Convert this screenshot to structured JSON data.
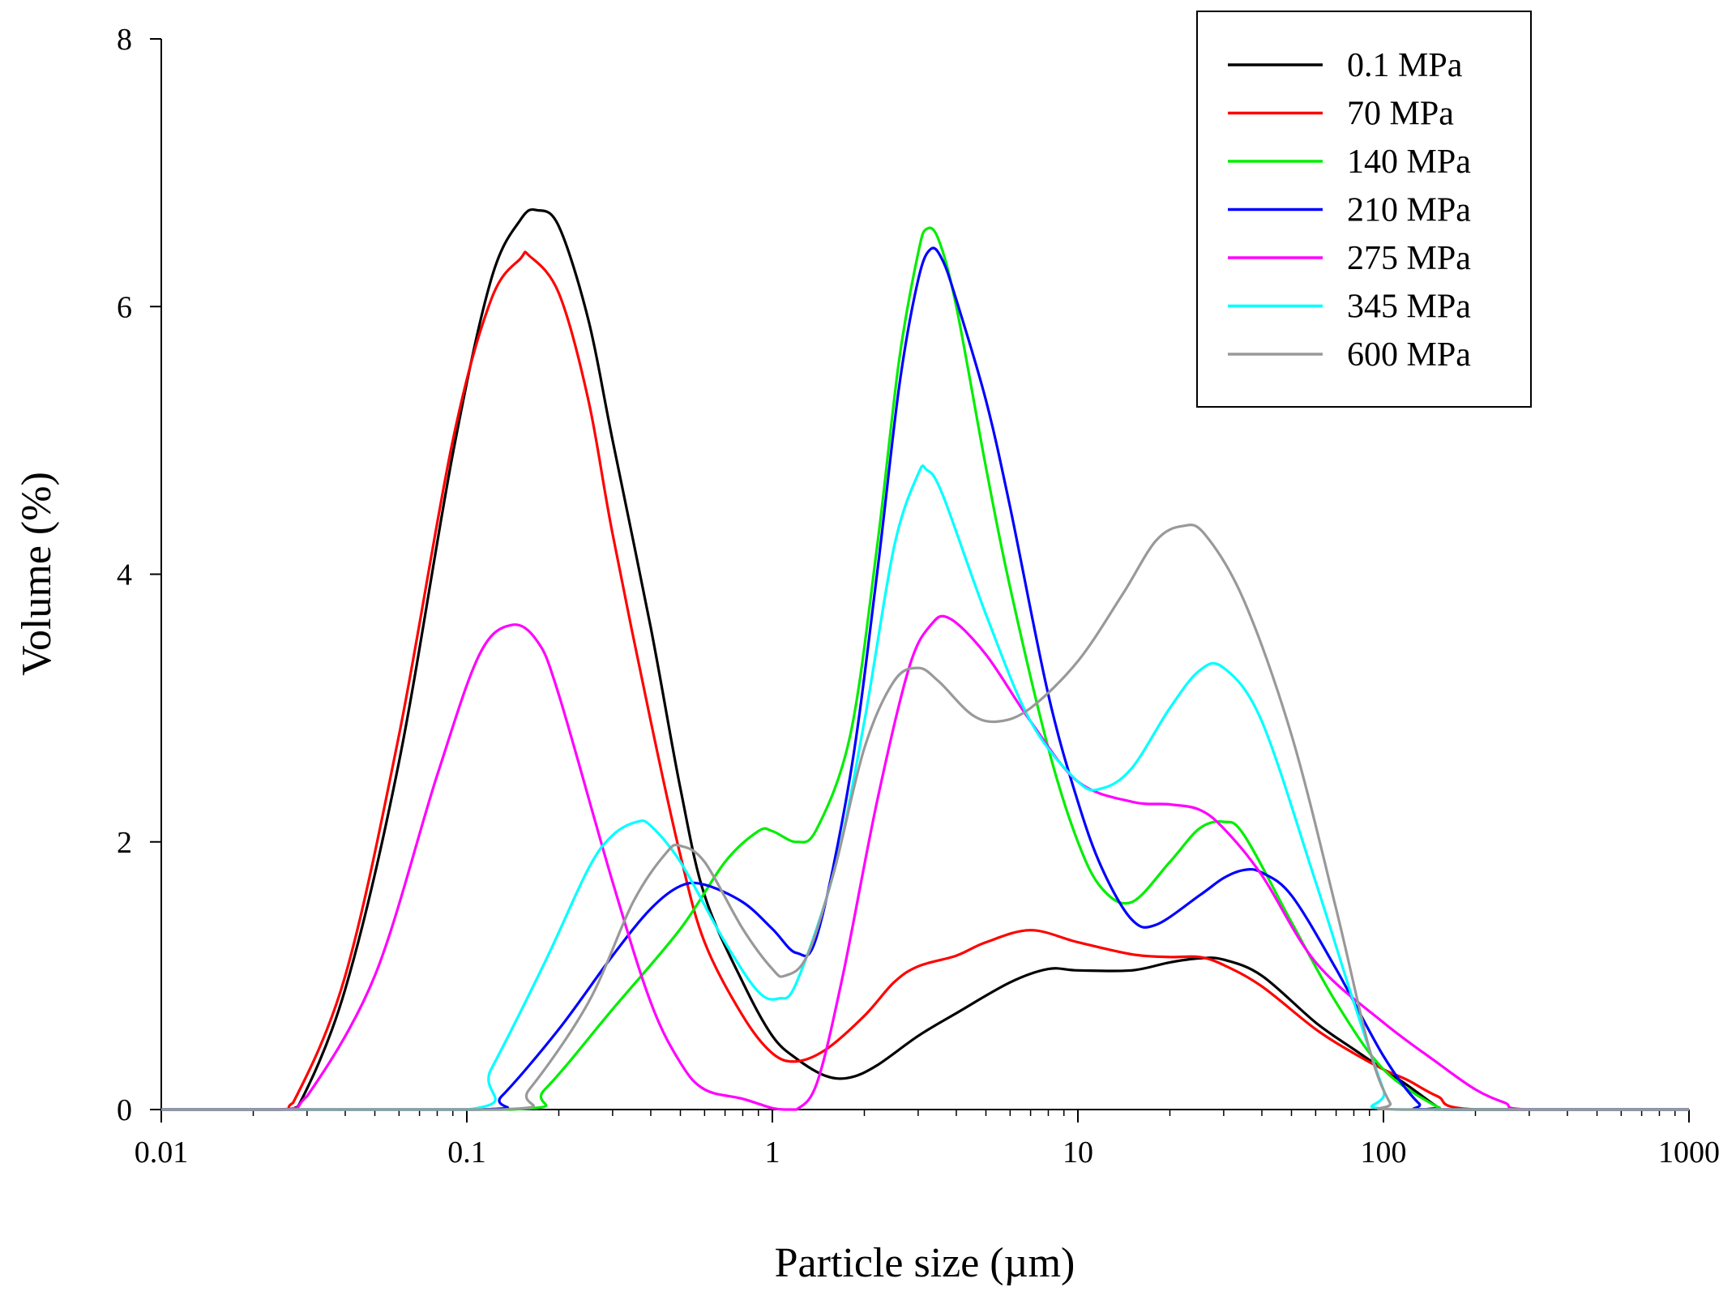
{
  "chart_data": {
    "type": "line",
    "title": "",
    "xlabel": "Particle size (µm)",
    "ylabel": "Volume (%)",
    "xscale": "log",
    "xlim": [
      0.01,
      1000
    ],
    "ylim": [
      0,
      8
    ],
    "xticks": [
      {
        "value": 0.01,
        "label": "0.01"
      },
      {
        "value": 0.1,
        "label": "0.1"
      },
      {
        "value": 1,
        "label": "1"
      },
      {
        "value": 10,
        "label": "10"
      },
      {
        "value": 100,
        "label": "100"
      },
      {
        "value": 1000,
        "label": "1000"
      }
    ],
    "yticks": [
      {
        "value": 0,
        "label": "0"
      },
      {
        "value": 2,
        "label": "2"
      },
      {
        "value": 4,
        "label": "4"
      },
      {
        "value": 6,
        "label": "6"
      },
      {
        "value": 8,
        "label": "8"
      }
    ],
    "grid": false,
    "legend_position": "top-right",
    "series": [
      {
        "name": "0.1 MPa",
        "color": "#000000",
        "points": [
          [
            0.01,
            0
          ],
          [
            0.025,
            0
          ],
          [
            0.028,
            0.02
          ],
          [
            0.04,
            0.9
          ],
          [
            0.06,
            2.6
          ],
          [
            0.09,
            4.9
          ],
          [
            0.12,
            6.2
          ],
          [
            0.15,
            6.65
          ],
          [
            0.17,
            6.72
          ],
          [
            0.2,
            6.6
          ],
          [
            0.25,
            5.9
          ],
          [
            0.3,
            5.0
          ],
          [
            0.4,
            3.6
          ],
          [
            0.5,
            2.4
          ],
          [
            0.6,
            1.6
          ],
          [
            0.8,
            0.95
          ],
          [
            1.0,
            0.55
          ],
          [
            1.2,
            0.38
          ],
          [
            1.5,
            0.25
          ],
          [
            1.8,
            0.24
          ],
          [
            2.2,
            0.33
          ],
          [
            3,
            0.55
          ],
          [
            4,
            0.72
          ],
          [
            6,
            0.95
          ],
          [
            8,
            1.05
          ],
          [
            10,
            1.04
          ],
          [
            15,
            1.04
          ],
          [
            20,
            1.1
          ],
          [
            25,
            1.13
          ],
          [
            30,
            1.12
          ],
          [
            40,
            1.0
          ],
          [
            60,
            0.65
          ],
          [
            80,
            0.45
          ],
          [
            100,
            0.3
          ],
          [
            120,
            0.18
          ],
          [
            150,
            0.02
          ],
          [
            160,
            0
          ],
          [
            1000,
            0
          ]
        ]
      },
      {
        "name": "70 MPa",
        "color": "#ff0000",
        "points": [
          [
            0.01,
            0
          ],
          [
            0.024,
            0
          ],
          [
            0.027,
            0.05
          ],
          [
            0.04,
            1.0
          ],
          [
            0.06,
            2.8
          ],
          [
            0.09,
            5.0
          ],
          [
            0.12,
            6.05
          ],
          [
            0.15,
            6.36
          ],
          [
            0.16,
            6.38
          ],
          [
            0.2,
            6.1
          ],
          [
            0.25,
            5.3
          ],
          [
            0.3,
            4.3
          ],
          [
            0.4,
            2.9
          ],
          [
            0.5,
            1.9
          ],
          [
            0.6,
            1.25
          ],
          [
            0.8,
            0.7
          ],
          [
            1.0,
            0.42
          ],
          [
            1.2,
            0.36
          ],
          [
            1.5,
            0.45
          ],
          [
            2,
            0.7
          ],
          [
            2.5,
            0.95
          ],
          [
            3,
            1.07
          ],
          [
            4,
            1.15
          ],
          [
            5,
            1.25
          ],
          [
            7,
            1.34
          ],
          [
            10,
            1.25
          ],
          [
            15,
            1.16
          ],
          [
            20,
            1.14
          ],
          [
            25,
            1.14
          ],
          [
            30,
            1.08
          ],
          [
            40,
            0.92
          ],
          [
            60,
            0.6
          ],
          [
            80,
            0.42
          ],
          [
            100,
            0.3
          ],
          [
            120,
            0.22
          ],
          [
            150,
            0.1
          ],
          [
            200,
            0
          ],
          [
            1000,
            0
          ]
        ]
      },
      {
        "name": "140 MPa",
        "color": "#00ee00",
        "points": [
          [
            0.01,
            0
          ],
          [
            0.14,
            0
          ],
          [
            0.18,
            0.15
          ],
          [
            0.3,
            0.75
          ],
          [
            0.5,
            1.35
          ],
          [
            0.7,
            1.85
          ],
          [
            0.9,
            2.08
          ],
          [
            1.0,
            2.08
          ],
          [
            1.2,
            2.0
          ],
          [
            1.4,
            2.1
          ],
          [
            1.8,
            2.8
          ],
          [
            2.2,
            4.2
          ],
          [
            2.6,
            5.6
          ],
          [
            3.0,
            6.4
          ],
          [
            3.2,
            6.58
          ],
          [
            3.5,
            6.5
          ],
          [
            4,
            6.0
          ],
          [
            5,
            4.8
          ],
          [
            6,
            3.9
          ],
          [
            8,
            2.7
          ],
          [
            10,
            2.0
          ],
          [
            12,
            1.65
          ],
          [
            15,
            1.55
          ],
          [
            20,
            1.85
          ],
          [
            25,
            2.1
          ],
          [
            30,
            2.15
          ],
          [
            35,
            2.05
          ],
          [
            50,
            1.4
          ],
          [
            70,
            0.8
          ],
          [
            100,
            0.3
          ],
          [
            150,
            0.02
          ],
          [
            170,
            0
          ],
          [
            1000,
            0
          ]
        ]
      },
      {
        "name": "210 MPa",
        "color": "#0000ff",
        "points": [
          [
            0.01,
            0
          ],
          [
            0.11,
            0
          ],
          [
            0.13,
            0.1
          ],
          [
            0.2,
            0.6
          ],
          [
            0.3,
            1.15
          ],
          [
            0.4,
            1.5
          ],
          [
            0.5,
            1.67
          ],
          [
            0.6,
            1.68
          ],
          [
            0.8,
            1.55
          ],
          [
            1.0,
            1.35
          ],
          [
            1.2,
            1.17
          ],
          [
            1.4,
            1.3
          ],
          [
            1.8,
            2.5
          ],
          [
            2.2,
            4.0
          ],
          [
            2.6,
            5.4
          ],
          [
            3.0,
            6.2
          ],
          [
            3.3,
            6.43
          ],
          [
            3.6,
            6.35
          ],
          [
            4,
            6.05
          ],
          [
            5,
            5.3
          ],
          [
            6,
            4.5
          ],
          [
            8,
            3.1
          ],
          [
            10,
            2.3
          ],
          [
            12,
            1.8
          ],
          [
            15,
            1.42
          ],
          [
            18,
            1.38
          ],
          [
            25,
            1.6
          ],
          [
            30,
            1.73
          ],
          [
            35,
            1.79
          ],
          [
            40,
            1.77
          ],
          [
            50,
            1.6
          ],
          [
            70,
            1.05
          ],
          [
            100,
            0.4
          ],
          [
            130,
            0.05
          ],
          [
            150,
            0
          ],
          [
            1000,
            0
          ]
        ]
      },
      {
        "name": "275 MPa",
        "color": "#ff00ff",
        "points": [
          [
            0.01,
            0
          ],
          [
            0.025,
            0
          ],
          [
            0.03,
            0.1
          ],
          [
            0.05,
            1.0
          ],
          [
            0.08,
            2.5
          ],
          [
            0.11,
            3.4
          ],
          [
            0.14,
            3.62
          ],
          [
            0.17,
            3.5
          ],
          [
            0.2,
            3.1
          ],
          [
            0.3,
            1.7
          ],
          [
            0.4,
            0.8
          ],
          [
            0.5,
            0.35
          ],
          [
            0.6,
            0.15
          ],
          [
            0.8,
            0.08
          ],
          [
            1.0,
            0.01
          ],
          [
            1.1,
            0
          ],
          [
            1.2,
            0
          ],
          [
            1.4,
            0.2
          ],
          [
            1.7,
            1.0
          ],
          [
            2.2,
            2.3
          ],
          [
            2.8,
            3.3
          ],
          [
            3.3,
            3.62
          ],
          [
            3.8,
            3.67
          ],
          [
            5,
            3.4
          ],
          [
            7,
            2.9
          ],
          [
            10,
            2.45
          ],
          [
            15,
            2.3
          ],
          [
            20,
            2.28
          ],
          [
            25,
            2.24
          ],
          [
            30,
            2.1
          ],
          [
            40,
            1.75
          ],
          [
            60,
            1.1
          ],
          [
            100,
            0.65
          ],
          [
            150,
            0.35
          ],
          [
            200,
            0.15
          ],
          [
            250,
            0.05
          ],
          [
            300,
            0
          ],
          [
            1000,
            0
          ]
        ]
      },
      {
        "name": "345 MPa",
        "color": "#00ffff",
        "points": [
          [
            0.01,
            0
          ],
          [
            0.1,
            0
          ],
          [
            0.12,
            0.3
          ],
          [
            0.18,
            1.1
          ],
          [
            0.25,
            1.8
          ],
          [
            0.3,
            2.05
          ],
          [
            0.36,
            2.15
          ],
          [
            0.4,
            2.12
          ],
          [
            0.5,
            1.85
          ],
          [
            0.7,
            1.25
          ],
          [
            0.9,
            0.88
          ],
          [
            1.05,
            0.83
          ],
          [
            1.2,
            0.95
          ],
          [
            1.6,
            1.8
          ],
          [
            2,
            2.9
          ],
          [
            2.5,
            4.2
          ],
          [
            3.0,
            4.75
          ],
          [
            3.2,
            4.78
          ],
          [
            3.6,
            4.6
          ],
          [
            5,
            3.7
          ],
          [
            7,
            2.9
          ],
          [
            10,
            2.45
          ],
          [
            12,
            2.4
          ],
          [
            15,
            2.55
          ],
          [
            20,
            3.0
          ],
          [
            25,
            3.28
          ],
          [
            30,
            3.3
          ],
          [
            40,
            2.9
          ],
          [
            60,
            1.7
          ],
          [
            80,
            0.8
          ],
          [
            100,
            0.15
          ],
          [
            110,
            0
          ],
          [
            1000,
            0
          ]
        ]
      },
      {
        "name": "600 MPa",
        "color": "#999999",
        "points": [
          [
            0.01,
            0
          ],
          [
            0.13,
            0
          ],
          [
            0.16,
            0.15
          ],
          [
            0.25,
            0.8
          ],
          [
            0.35,
            1.55
          ],
          [
            0.45,
            1.92
          ],
          [
            0.5,
            1.97
          ],
          [
            0.6,
            1.85
          ],
          [
            0.8,
            1.35
          ],
          [
            1.0,
            1.05
          ],
          [
            1.1,
            1.0
          ],
          [
            1.3,
            1.15
          ],
          [
            1.6,
            1.8
          ],
          [
            2,
            2.7
          ],
          [
            2.5,
            3.2
          ],
          [
            3,
            3.3
          ],
          [
            3.5,
            3.2
          ],
          [
            4.5,
            2.95
          ],
          [
            5.5,
            2.9
          ],
          [
            7,
            3.0
          ],
          [
            10,
            3.35
          ],
          [
            14,
            3.85
          ],
          [
            18,
            4.25
          ],
          [
            22,
            4.36
          ],
          [
            26,
            4.3
          ],
          [
            35,
            3.8
          ],
          [
            50,
            2.8
          ],
          [
            70,
            1.5
          ],
          [
            90,
            0.45
          ],
          [
            105,
            0.05
          ],
          [
            115,
            0
          ],
          [
            1000,
            0
          ]
        ]
      }
    ]
  }
}
